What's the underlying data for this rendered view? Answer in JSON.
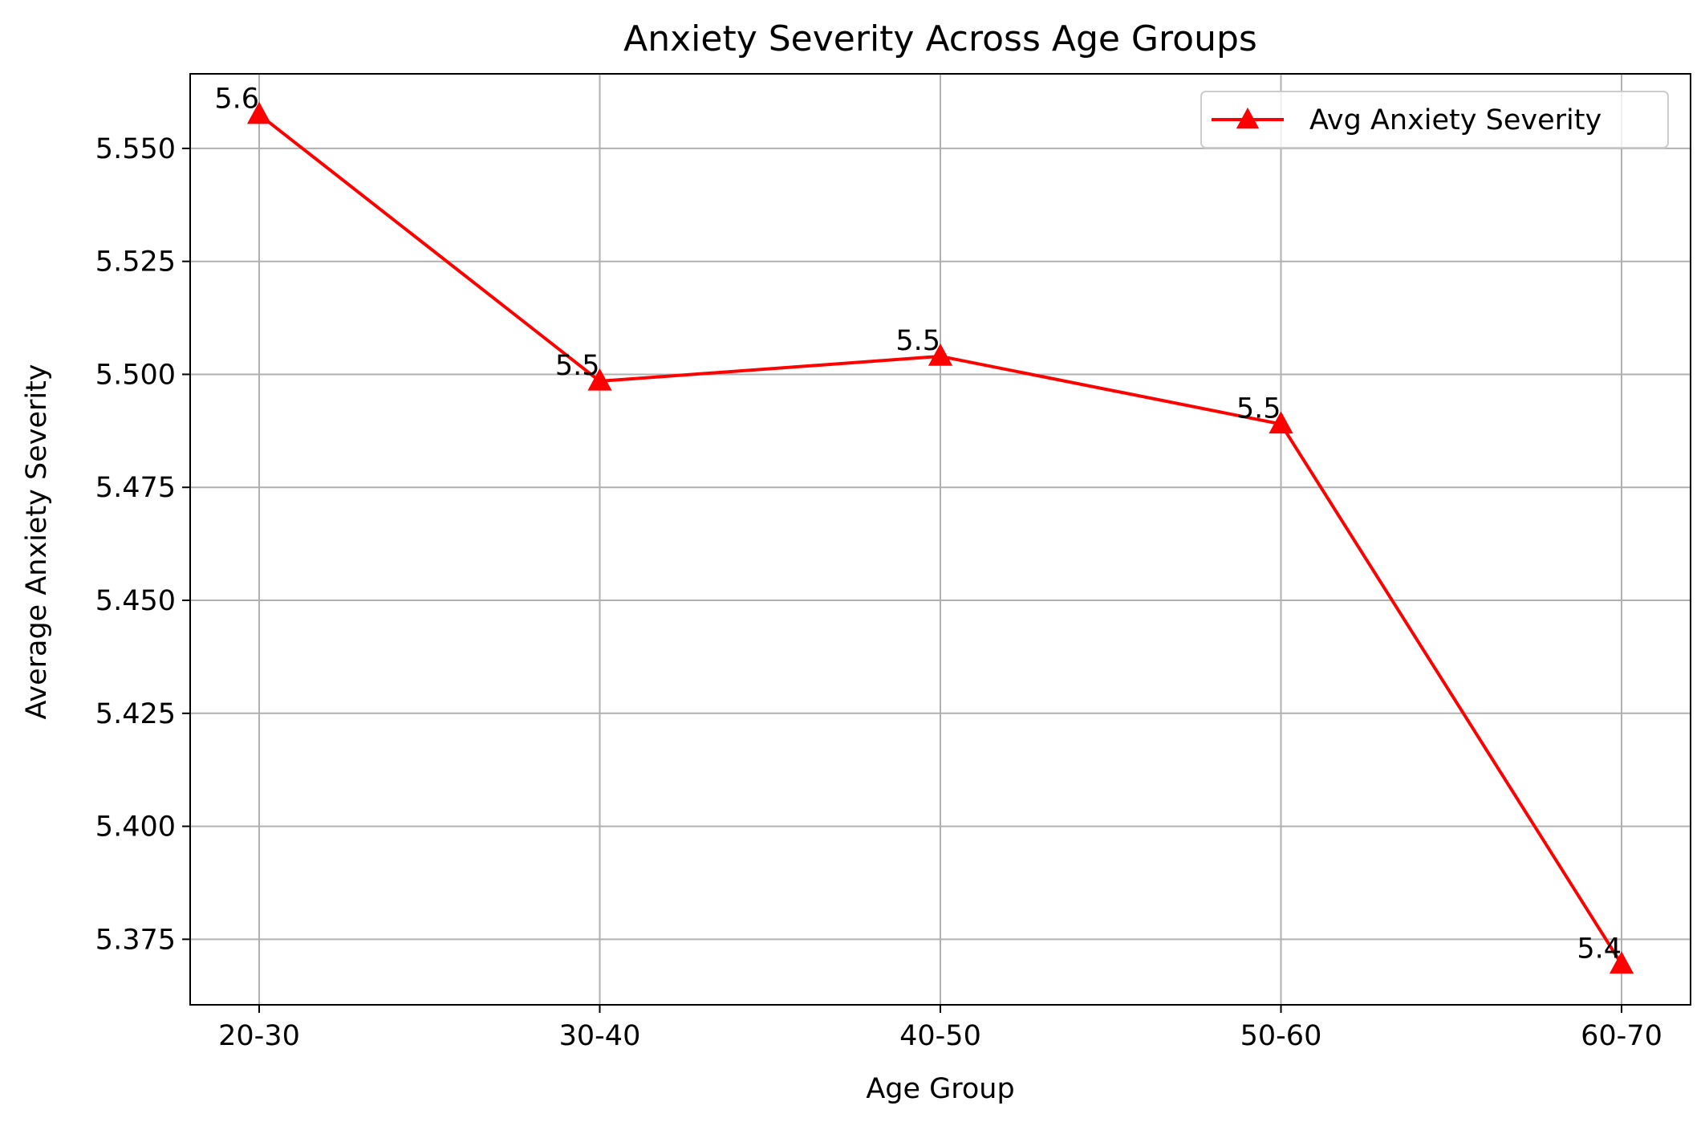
{
  "chart_data": {
    "type": "line",
    "title": "Anxiety Severity Across Age Groups",
    "xlabel": "Age Group",
    "ylabel": "Average Anxiety Severity",
    "categories": [
      "20-30",
      "30-40",
      "40-50",
      "50-60",
      "60-70"
    ],
    "series": [
      {
        "name": "Avg Anxiety Severity",
        "values": [
          5.5575,
          5.4985,
          5.504,
          5.489,
          5.3695
        ],
        "data_labels": [
          "5.6",
          "5.5",
          "5.5",
          "5.5",
          "5.4"
        ],
        "color": "#ff0000",
        "marker": "triangle-up"
      }
    ],
    "ylim": [
      5.3605,
      5.5665
    ],
    "yticks": [
      5.375,
      5.4,
      5.425,
      5.45,
      5.475,
      5.5,
      5.525,
      5.55
    ],
    "ytick_labels": [
      "5.375",
      "5.400",
      "5.425",
      "5.450",
      "5.475",
      "5.500",
      "5.525",
      "5.550"
    ],
    "grid": true,
    "legend_position": "top-right"
  }
}
